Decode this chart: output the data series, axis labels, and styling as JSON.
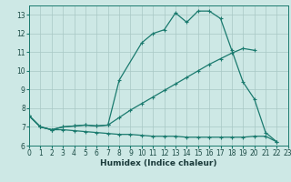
{
  "xlabel": "Humidex (Indice chaleur)",
  "xlim": [
    0,
    23
  ],
  "ylim": [
    6,
    13.5
  ],
  "yticks": [
    6,
    7,
    8,
    9,
    10,
    11,
    12,
    13
  ],
  "xticks": [
    0,
    1,
    2,
    3,
    4,
    5,
    6,
    7,
    8,
    9,
    10,
    11,
    12,
    13,
    14,
    15,
    16,
    17,
    18,
    19,
    20,
    21,
    22,
    23
  ],
  "bg_color": "#cde8e5",
  "grid_color": "#a8c8c5",
  "line_color": "#1a7a6e",
  "line1_x": [
    0,
    1,
    2,
    3,
    4,
    5,
    6,
    7,
    8,
    10,
    11,
    12,
    13,
    14,
    15,
    16,
    17,
    18,
    19,
    20,
    21,
    22
  ],
  "line1_y": [
    7.6,
    7.0,
    6.85,
    7.0,
    7.05,
    7.1,
    7.05,
    7.1,
    9.5,
    11.5,
    12.0,
    12.2,
    13.1,
    12.6,
    13.2,
    13.2,
    12.8,
    11.1,
    9.4,
    8.5,
    6.7,
    6.2
  ],
  "line2_x": [
    0,
    1,
    2,
    3,
    4,
    5,
    6,
    7,
    8,
    9,
    10,
    11,
    12,
    13,
    14,
    15,
    16,
    17,
    18,
    19,
    20
  ],
  "line2_y": [
    7.6,
    7.0,
    6.85,
    7.0,
    7.05,
    7.1,
    7.05,
    7.1,
    7.5,
    7.9,
    8.25,
    8.6,
    8.95,
    9.3,
    9.65,
    10.0,
    10.35,
    10.65,
    10.95,
    11.2,
    11.1
  ],
  "line3_x": [
    0,
    1,
    2,
    3,
    4,
    5,
    6,
    7,
    8,
    9,
    10,
    11,
    12,
    13,
    14,
    15,
    16,
    17,
    18,
    19,
    20,
    21,
    22
  ],
  "line3_y": [
    7.6,
    7.0,
    6.85,
    6.85,
    6.8,
    6.75,
    6.7,
    6.65,
    6.6,
    6.6,
    6.55,
    6.5,
    6.5,
    6.5,
    6.45,
    6.45,
    6.45,
    6.45,
    6.45,
    6.45,
    6.5,
    6.5,
    6.2
  ]
}
